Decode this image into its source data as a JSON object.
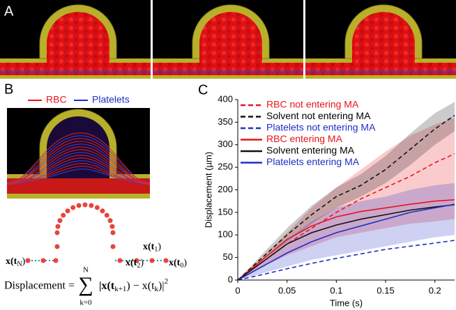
{
  "panels": {
    "a": {
      "label": "A"
    },
    "b": {
      "label": "B",
      "legend": [
        "RBC",
        "Platelets"
      ]
    },
    "c": {
      "label": "C"
    }
  },
  "trajectory": {
    "points": [
      {
        "base": "x(t",
        "sub": "N",
        "close": ")"
      },
      {
        "base": "x(t",
        "sub": "2",
        "close": ")"
      },
      {
        "base": "x(t",
        "sub": "1",
        "close": ")"
      },
      {
        "base": "x(t",
        "sub": "0",
        "close": ")"
      }
    ]
  },
  "formula": {
    "lhs": "Displacement =",
    "sum_upper": "N",
    "sum_lower": "k=0",
    "body": [
      "|x(t",
      "k+1",
      ") − x(t",
      "k",
      ")|",
      "2"
    ]
  },
  "chart_data": {
    "type": "line",
    "x_label": "Time (s)",
    "y_label": "Displacement (µm)",
    "x": [
      0,
      0.025,
      0.05,
      0.075,
      0.1,
      0.125,
      0.15,
      0.175,
      0.2,
      0.22
    ],
    "xlim": [
      0,
      0.22
    ],
    "ylim": [
      0,
      400
    ],
    "xticks": [
      0,
      0.05,
      0.1,
      0.15,
      0.2
    ],
    "yticks": [
      0,
      50,
      100,
      150,
      200,
      250,
      300,
      350,
      400
    ],
    "series": [
      {
        "name": "RBC not entering MA",
        "color": "#e8141c",
        "dashed": true,
        "values": [
          0,
          40,
          80,
          115,
          150,
          180,
          205,
          230,
          260,
          280
        ],
        "band": {
          "lower": [
            0,
            30,
            55,
            75,
            95,
            105,
            115,
            125,
            130,
            135
          ],
          "upper": [
            0,
            50,
            105,
            160,
            205,
            245,
            285,
            320,
            345,
            360
          ]
        }
      },
      {
        "name": "Solvent not entering MA",
        "color": "#111111",
        "dashed": true,
        "values": [
          0,
          50,
          100,
          145,
          185,
          210,
          245,
          290,
          335,
          365
        ],
        "band": {
          "lower": [
            0,
            42,
            85,
            125,
            160,
            185,
            215,
            255,
            300,
            330
          ],
          "upper": [
            0,
            58,
            115,
            165,
            205,
            235,
            275,
            325,
            370,
            395
          ]
        }
      },
      {
        "name": "Platelets not entering MA",
        "color": "#1f2fc4",
        "dashed": true,
        "values": [
          0,
          12,
          25,
          37,
          48,
          58,
          68,
          75,
          82,
          88
        ]
      },
      {
        "name": "RBC entering MA",
        "color": "#e8141c",
        "dashed": false,
        "values": [
          0,
          45,
          90,
          120,
          140,
          152,
          160,
          168,
          175,
          178
        ]
      },
      {
        "name": "Solvent entering MA",
        "color": "#111111",
        "dashed": false,
        "values": [
          0,
          40,
          80,
          105,
          122,
          135,
          145,
          155,
          162,
          167
        ]
      },
      {
        "name": "Platelets entering MA",
        "color": "#1f2fc4",
        "dashed": false,
        "values": [
          0,
          30,
          60,
          85,
          105,
          120,
          135,
          150,
          160,
          168
        ],
        "band": {
          "lower": [
            0,
            15,
            30,
            45,
            55,
            65,
            75,
            85,
            95,
            100
          ],
          "upper": [
            0,
            40,
            90,
            130,
            160,
            175,
            185,
            200,
            210,
            215
          ]
        }
      }
    ]
  }
}
